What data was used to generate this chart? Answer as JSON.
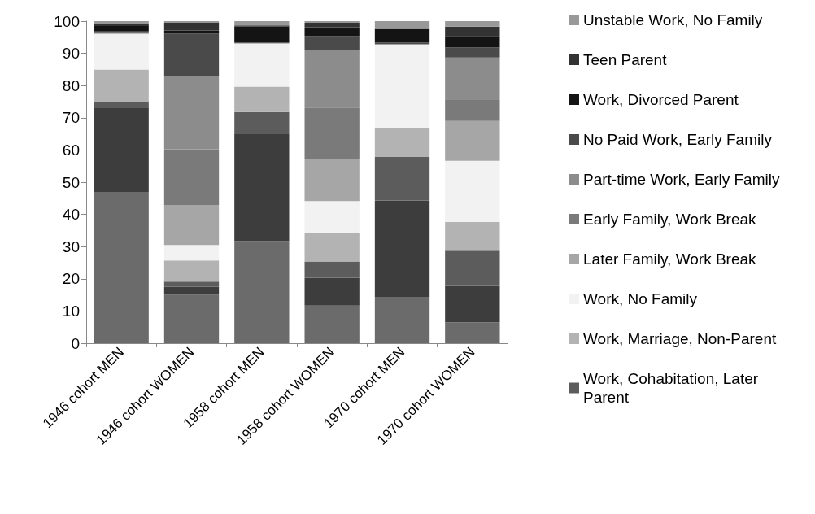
{
  "chart_data": {
    "type": "bar",
    "stacked": true,
    "categories": [
      "1946 cohort MEN",
      "1946 cohort WOMEN",
      "1958 cohort MEN",
      "1958 cohort WOMEN",
      "1970 cohort MEN",
      "1970 cohort WOMEN"
    ],
    "series": [
      {
        "color": "#6b6b6b",
        "values": [
          47,
          15,
          31.7,
          11.7,
          14.4,
          6.5
        ]
      },
      {
        "color": "#3d3d3d",
        "values": [
          26,
          2.5,
          33.2,
          8.6,
          29.9,
          11.3
        ]
      },
      {
        "name": "Work, Cohabitation, Later Parent",
        "color": "#5c5c5c",
        "values": [
          2,
          1.6,
          6.9,
          5.1,
          13.5,
          10.9
        ]
      },
      {
        "name": "Work, Marriage, Non-Parent",
        "color": "#b3b3b3",
        "values": [
          10,
          6.6,
          7.9,
          8.9,
          9.1,
          8.9
        ]
      },
      {
        "name": "Work, No Family",
        "color": "#f2f2f2",
        "values": [
          11,
          4.8,
          13.3,
          9.8,
          25.9,
          19
        ]
      },
      {
        "name": "Later Family, Work Break",
        "color": "#a6a6a6",
        "values": [
          0.5,
          12.4,
          0.2,
          13.1,
          null,
          12.4
        ]
      },
      {
        "name": "Early Family, Work Break",
        "color": "#7a7a7a",
        "values": [
          0,
          17.3,
          0,
          16,
          0,
          6.5
        ]
      },
      {
        "name": "Part-time Work, Early Family",
        "color": "#8c8c8c",
        "values": [
          0,
          22.6,
          0,
          17.8,
          0,
          13.2
        ]
      },
      {
        "name": "No Paid Work, Early Family",
        "color": "#4a4a4a",
        "values": [
          0.5,
          13.3,
          0.2,
          4.3,
          0.6,
          3.1
        ]
      },
      {
        "name": "Work, Divorced Parent",
        "color": "#141414",
        "values": [
          1.5,
          1,
          4.9,
          2.8,
          4.2,
          3.6
        ]
      },
      {
        "name": "Teen Parent",
        "color": "#333333",
        "values": [
          0.5,
          2.4,
          0.4,
          1.4,
          null,
          2.9
        ]
      },
      {
        "name": "Unstable Work, No Family",
        "color": "#999999",
        "values": [
          1,
          0.5,
          1.3,
          0.5,
          2.4,
          1.7
        ]
      }
    ],
    "ylim": [
      0,
      100
    ],
    "yticks": [
      0,
      10,
      20,
      30,
      40,
      50,
      60,
      70,
      80,
      90,
      100
    ],
    "grid": false,
    "legend": "right"
  }
}
